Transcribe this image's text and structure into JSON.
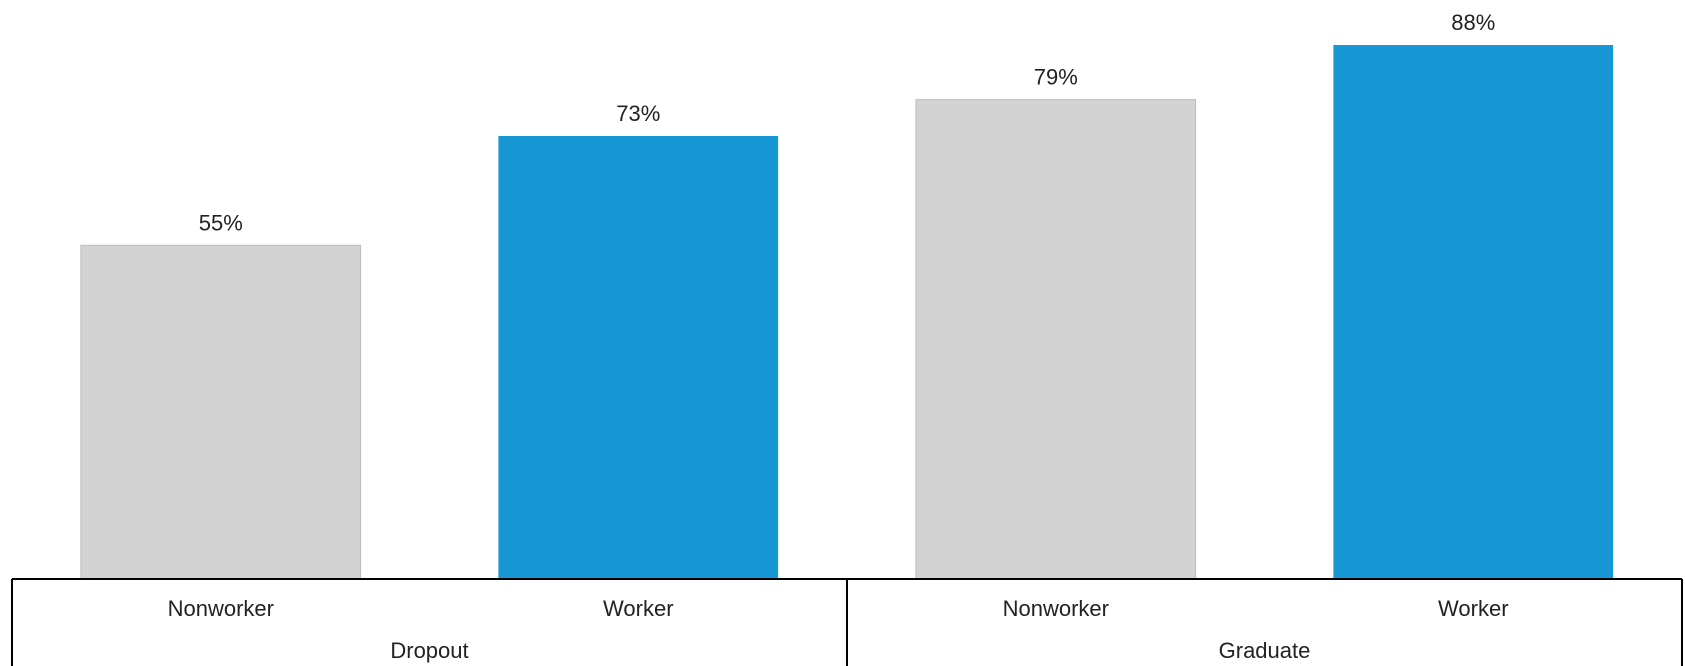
{
  "chart_data": {
    "type": "bar",
    "title": "",
    "xlabel": "",
    "ylabel": "",
    "ylim": [
      0,
      100
    ],
    "grid": false,
    "legend": "none",
    "groups": [
      "Dropout",
      "Graduate"
    ],
    "categories": [
      "Nonworker",
      "Worker",
      "Nonworker",
      "Worker"
    ],
    "category_group_index": [
      0,
      0,
      1,
      1
    ],
    "values": [
      55,
      73,
      79,
      88
    ],
    "value_labels": [
      "55%",
      "73%",
      "79%",
      "88%"
    ],
    "colors": [
      "#d3d3d3",
      "#1797d4",
      "#d3d3d3",
      "#1797d4"
    ],
    "bar_stroke": "#bbbbbb",
    "axis_color": "#000000"
  }
}
